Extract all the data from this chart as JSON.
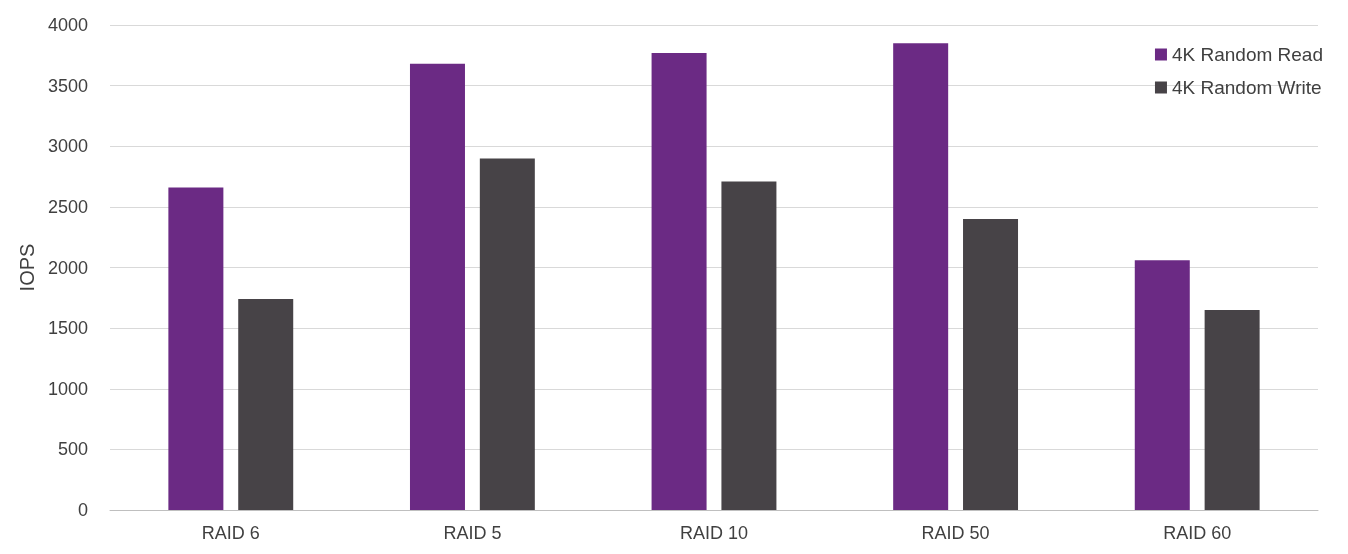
{
  "chart_data": {
    "type": "bar",
    "ylabel": "IOPS",
    "categories": [
      "RAID 6",
      "RAID 5",
      "RAID 10",
      "RAID 50",
      "RAID 60"
    ],
    "series": [
      {
        "name": "4K Random Read",
        "color": "#6b2a84",
        "values": [
          2660,
          3680,
          3770,
          3850,
          2060
        ]
      },
      {
        "name": "4K Random Write",
        "color": "#474347",
        "values": [
          1740,
          2900,
          2710,
          2400,
          1650
        ]
      }
    ],
    "ylim": [
      0,
      4000
    ],
    "yticks": [
      0,
      500,
      1000,
      1500,
      2000,
      2500,
      3000,
      3500,
      4000
    ],
    "grid": "y",
    "legend": "top right"
  }
}
